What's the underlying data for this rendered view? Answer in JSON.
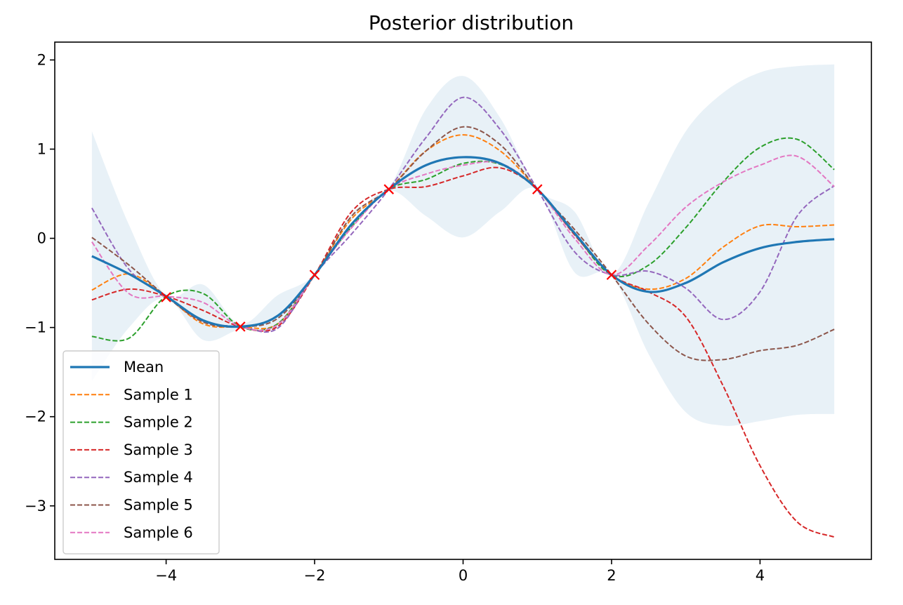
{
  "chart_data": {
    "type": "line",
    "title": "Posterior distribution",
    "xlabel": "",
    "ylabel": "",
    "xlim": [
      -5.5,
      5.5
    ],
    "ylim": [
      -3.6,
      2.2
    ],
    "xticks": [
      -4,
      -2,
      0,
      2,
      4
    ],
    "yticks": [
      2,
      1,
      0,
      -1,
      -2,
      -3
    ],
    "xtick_labels": [
      "−4",
      "−2",
      "0",
      "2",
      "4"
    ],
    "ytick_labels": [
      "2",
      "1",
      "0",
      "−1",
      "−2",
      "−3"
    ],
    "legend_position": "lower-left",
    "observations": {
      "x": [
        -4,
        -3,
        -2,
        -1,
        1,
        2
      ],
      "y": [
        -0.66,
        -0.99,
        -0.41,
        0.55,
        0.55,
        -0.41
      ],
      "color": "#ff0000"
    },
    "confidence_band": {
      "color": "#1f77b4",
      "x": [
        -5,
        -4.5,
        -4,
        -3.5,
        -3,
        -2.5,
        -2,
        -1.5,
        -1,
        -0.5,
        0,
        0.5,
        1,
        1.5,
        2,
        2.5,
        3,
        3.5,
        4,
        4.5,
        5
      ],
      "upper": [
        1.2,
        0.15,
        -0.64,
        -0.52,
        -0.96,
        -0.64,
        -0.4,
        0.28,
        0.56,
        1.45,
        1.82,
        1.35,
        0.56,
        0.3,
        -0.4,
        0.4,
        1.2,
        1.63,
        1.86,
        1.93,
        1.95
      ],
      "lower": [
        -1.6,
        -1.0,
        -0.67,
        -1.14,
        -1.02,
        -1.0,
        -0.42,
        0.2,
        0.54,
        0.25,
        0.01,
        0.3,
        0.54,
        -0.38,
        -0.42,
        -1.3,
        -1.95,
        -2.1,
        -2.05,
        -1.98,
        -1.97
      ]
    },
    "series": [
      {
        "name": "Mean",
        "color": "#1f77b4",
        "dashed": false,
        "x": [
          -5,
          -4.5,
          -4,
          -3.5,
          -3,
          -2.5,
          -2,
          -1.5,
          -1,
          -0.5,
          0,
          0.5,
          1,
          1.5,
          2,
          2.5,
          3,
          3.5,
          4,
          4.5,
          5
        ],
        "y": [
          -0.2,
          -0.4,
          -0.65,
          -0.92,
          -0.99,
          -0.87,
          -0.41,
          0.16,
          0.55,
          0.82,
          0.91,
          0.84,
          0.55,
          0.06,
          -0.41,
          -0.6,
          -0.5,
          -0.27,
          -0.11,
          -0.04,
          -0.01
        ]
      },
      {
        "name": "Sample 1",
        "color": "#ff7f0e",
        "dashed": true,
        "x": [
          -5,
          -4.5,
          -4,
          -3.5,
          -3,
          -2.5,
          -2,
          -1.5,
          -1,
          -0.5,
          0,
          0.5,
          1,
          1.5,
          2,
          2.5,
          3,
          3.5,
          4,
          4.5,
          5
        ],
        "y": [
          -0.58,
          -0.4,
          -0.65,
          -0.96,
          -0.99,
          -0.96,
          -0.41,
          0.22,
          0.55,
          0.98,
          1.16,
          0.98,
          0.55,
          0.05,
          -0.41,
          -0.57,
          -0.45,
          -0.1,
          0.14,
          0.13,
          0.15
        ]
      },
      {
        "name": "Sample 2",
        "color": "#2ca02c",
        "dashed": true,
        "x": [
          -5,
          -4.5,
          -4,
          -3.5,
          -3,
          -2.5,
          -2,
          -1.5,
          -1,
          -0.5,
          0,
          0.5,
          1,
          1.5,
          2,
          2.5,
          3,
          3.5,
          4,
          4.5,
          5
        ],
        "y": [
          -1.1,
          -1.12,
          -0.65,
          -0.62,
          -0.99,
          -0.96,
          -0.41,
          0.13,
          0.55,
          0.66,
          0.84,
          0.83,
          0.55,
          0.05,
          -0.41,
          -0.3,
          0.12,
          0.63,
          1.02,
          1.11,
          0.77
        ]
      },
      {
        "name": "Sample 3",
        "color": "#d62728",
        "dashed": true,
        "x": [
          -5,
          -4.5,
          -4,
          -3.5,
          -3,
          -2.5,
          -2,
          -1.5,
          -1,
          -0.5,
          0,
          0.5,
          1,
          1.5,
          2,
          2.5,
          3,
          3.5,
          4,
          4.5,
          5
        ],
        "y": [
          -0.69,
          -0.57,
          -0.65,
          -0.81,
          -0.99,
          -0.99,
          -0.41,
          0.3,
          0.55,
          0.58,
          0.7,
          0.79,
          0.55,
          0.04,
          -0.41,
          -0.6,
          -0.88,
          -1.65,
          -2.55,
          -3.18,
          -3.35
        ]
      },
      {
        "name": "Sample 4",
        "color": "#9467bd",
        "dashed": true,
        "x": [
          -5,
          -4.5,
          -4,
          -3.5,
          -3,
          -2.5,
          -2,
          -1.5,
          -1,
          -0.5,
          0,
          0.5,
          1,
          1.5,
          2,
          2.5,
          3,
          3.5,
          4,
          4.5,
          5
        ],
        "y": [
          0.34,
          -0.35,
          -0.65,
          -0.93,
          -0.99,
          -1.01,
          -0.41,
          0.05,
          0.55,
          1.13,
          1.58,
          1.22,
          0.55,
          -0.15,
          -0.41,
          -0.37,
          -0.56,
          -0.91,
          -0.6,
          0.25,
          0.59
        ]
      },
      {
        "name": "Sample 5",
        "color": "#8c564b",
        "dashed": true,
        "x": [
          -5,
          -4.5,
          -4,
          -3.5,
          -3,
          -2.5,
          -2,
          -1.5,
          -1,
          -0.5,
          0,
          0.5,
          1,
          1.5,
          2,
          2.5,
          3,
          3.5,
          4,
          4.5,
          5
        ],
        "y": [
          0.01,
          -0.3,
          -0.65,
          -0.94,
          -0.99,
          -0.9,
          -0.41,
          0.25,
          0.55,
          0.98,
          1.25,
          1.05,
          0.55,
          0.1,
          -0.41,
          -0.96,
          -1.32,
          -1.36,
          -1.26,
          -1.2,
          -1.02
        ]
      },
      {
        "name": "Sample 6",
        "color": "#e377c2",
        "dashed": true,
        "x": [
          -5,
          -4.5,
          -4,
          -3.5,
          -3,
          -2.5,
          -2,
          -1.5,
          -1,
          -0.5,
          0,
          0.5,
          1,
          1.5,
          2,
          2.5,
          3,
          3.5,
          4,
          4.5,
          5
        ],
        "y": [
          -0.04,
          -0.62,
          -0.65,
          -0.72,
          -0.99,
          -0.97,
          -0.41,
          0.12,
          0.55,
          0.72,
          0.82,
          0.84,
          0.55,
          0.0,
          -0.41,
          -0.08,
          0.35,
          0.63,
          0.82,
          0.92,
          0.58
        ]
      }
    ]
  }
}
